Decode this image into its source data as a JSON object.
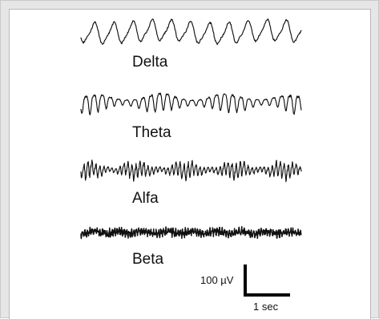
{
  "waves": [
    {
      "name": "Delta"
    },
    {
      "name": "Theta"
    },
    {
      "name": "Alfa"
    },
    {
      "name": "Beta"
    }
  ],
  "scale": {
    "amplitude_label": "100 µV",
    "time_label": "1 sec"
  }
}
